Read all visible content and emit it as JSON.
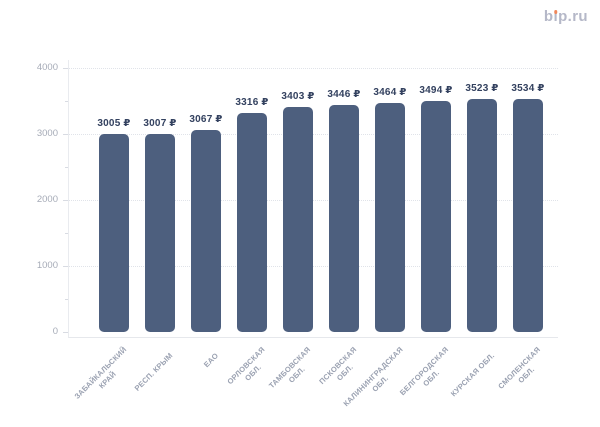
{
  "logo": {
    "text": "bip.ru",
    "part_b": "b",
    "part_i_stem": "ı",
    "part_rest": "p.ru",
    "text_color": "#b5b8c8",
    "dot_color": "#f0875a"
  },
  "chart_data": {
    "type": "bar",
    "title": "",
    "xlabel": "",
    "ylabel": "",
    "categories": [
      "ЗАБАЙКАЛЬСКИЙ КРАЙ",
      "РЕСП. КРЫМ",
      "ЕАО",
      "ОРЛОВСКАЯ ОБЛ.",
      "ТАМБОВСКАЯ ОБЛ.",
      "ПСКОВСКАЯ ОБЛ.",
      "КАЛИНИНГРАДСКАЯ ОБЛ.",
      "БЕЛГОРОДСКАЯ ОБЛ.",
      "КУРСКАЯ ОБЛ.",
      "СМОЛЕНСКАЯ ОБЛ."
    ],
    "category_lines": [
      [
        "ЗАБАЙКАЛЬСКИЙ",
        "КРАЙ"
      ],
      [
        "РЕСП. КРЫМ"
      ],
      [
        "ЕАО"
      ],
      [
        "ОРЛОВСКАЯ",
        "ОБЛ."
      ],
      [
        "ТАМБОВСКАЯ",
        "ОБЛ."
      ],
      [
        "ПСКОВСКАЯ",
        "ОБЛ."
      ],
      [
        "КАЛИНИНГРАДСКАЯ",
        "ОБЛ."
      ],
      [
        "БЕЛГОРОДСКАЯ",
        "ОБЛ."
      ],
      [
        "КУРСКАЯ ОБЛ."
      ],
      [
        "СМОЛЕНСКАЯ",
        "ОБЛ."
      ]
    ],
    "values": [
      3005,
      3007,
      3067,
      3316,
      3403,
      3446,
      3464,
      3494,
      3523,
      3534
    ],
    "value_labels": [
      "3005 ₽",
      "3007 ₽",
      "3067 ₽",
      "3316 ₽",
      "3403 ₽",
      "3446 ₽",
      "3464 ₽",
      "3494 ₽",
      "3523 ₽",
      "3534 ₽"
    ],
    "currency_symbol": "₽",
    "ylim": [
      0,
      4000
    ],
    "yticks": [
      0,
      1000,
      2000,
      3000,
      4000
    ],
    "ytick_labels": [
      "0",
      "1000",
      "2000",
      "3000",
      "4000"
    ],
    "minor_yticks": [
      500,
      1500,
      2500,
      3500
    ],
    "grid": "horizontal-dotted",
    "legend": "none",
    "bar_color": "#4d5f7e",
    "value_label_color": "#33415f",
    "axis_tick_label_color": "#a6abb7",
    "x_tick_label_color": "#9aa1b1",
    "gridline_color": "#e0e3e9"
  }
}
